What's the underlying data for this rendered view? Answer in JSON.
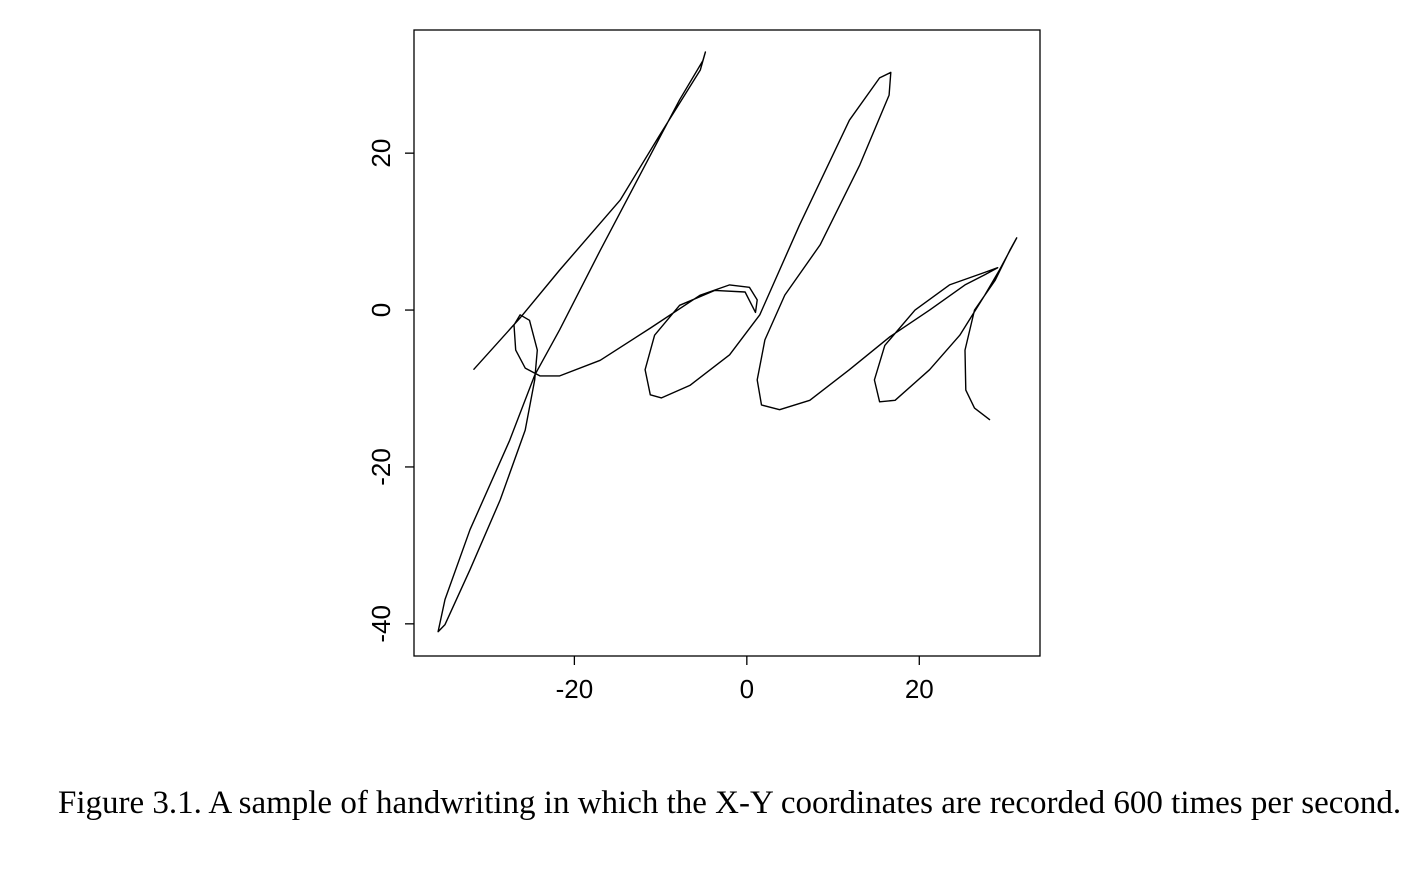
{
  "chart_data": {
    "type": "line",
    "caption": "Figure 3.1. A sample of handwriting in which the X-Y coordinates are recorded 600 times per second.",
    "color": "#000000",
    "x": [
      -31.7,
      -26.3,
      -21.7,
      -14.7,
      -10.1,
      -5.4,
      -4.8,
      -5.1,
      -7.8,
      -12.4,
      -17.0,
      -21.7,
      -24.6,
      -27.5,
      -32.1,
      -35.0,
      -35.8,
      -35.0,
      -32.1,
      -28.6,
      -25.7,
      -24.6,
      -24.3,
      -25.2,
      -26.3,
      -27.0,
      -26.8,
      -25.7,
      -24.0,
      -21.7,
      -17.0,
      -11.2,
      -5.4,
      -2.0,
      0.3,
      1.2,
      1.0,
      -0.2,
      -3.7,
      -7.8,
      -10.7,
      -11.8,
      -11.2,
      -9.9,
      -6.6,
      -2.0,
      1.5,
      6.1,
      11.9,
      15.4,
      16.7,
      16.5,
      13.1,
      8.5,
      4.4,
      2.1,
      1.2,
      1.7,
      3.8,
      7.3,
      11.9,
      16.6,
      21.2,
      25.3,
      27.6,
      29.1,
      27.6,
      23.5,
      19.5,
      16.0,
      14.8,
      15.4,
      17.2,
      21.2,
      24.7,
      27.6,
      29.3,
      31.3,
      30.5,
      28.8,
      26.4,
      25.3,
      25.4,
      26.4,
      28.2
    ],
    "values": [
      -7.6,
      -1.0,
      5.1,
      14.0,
      22.3,
      30.6,
      32.9,
      31.8,
      26.8,
      17.2,
      7.6,
      -2.5,
      -8.3,
      -16.6,
      -28.0,
      -36.9,
      -41.0,
      -40.1,
      -33.1,
      -24.2,
      -15.3,
      -8.9,
      -5.1,
      -1.3,
      -0.6,
      -1.9,
      -5.1,
      -7.4,
      -8.4,
      -8.4,
      -6.4,
      -2.3,
      1.9,
      3.2,
      2.9,
      1.3,
      -0.3,
      2.3,
      2.5,
      0.6,
      -3.2,
      -7.6,
      -10.8,
      -11.2,
      -9.6,
      -5.7,
      -0.6,
      10.8,
      24.2,
      29.6,
      30.3,
      27.4,
      18.5,
      8.3,
      1.9,
      -3.8,
      -8.9,
      -12.1,
      -12.7,
      -11.5,
      -7.6,
      -3.4,
      0.0,
      3.2,
      4.5,
      5.4,
      4.8,
      3.2,
      0.0,
      -4.5,
      -8.9,
      -11.7,
      -11.5,
      -7.6,
      -3.2,
      1.9,
      5.1,
      9.2,
      7.6,
      3.8,
      0.0,
      -5.1,
      -10.2,
      -12.5,
      -14.0
    ],
    "xlim": [
      -38.6,
      34.0
    ],
    "ylim": [
      -44.1,
      35.7
    ],
    "xticks": [
      -20,
      0,
      20
    ],
    "yticks": [
      -40,
      -20,
      0,
      20
    ]
  }
}
